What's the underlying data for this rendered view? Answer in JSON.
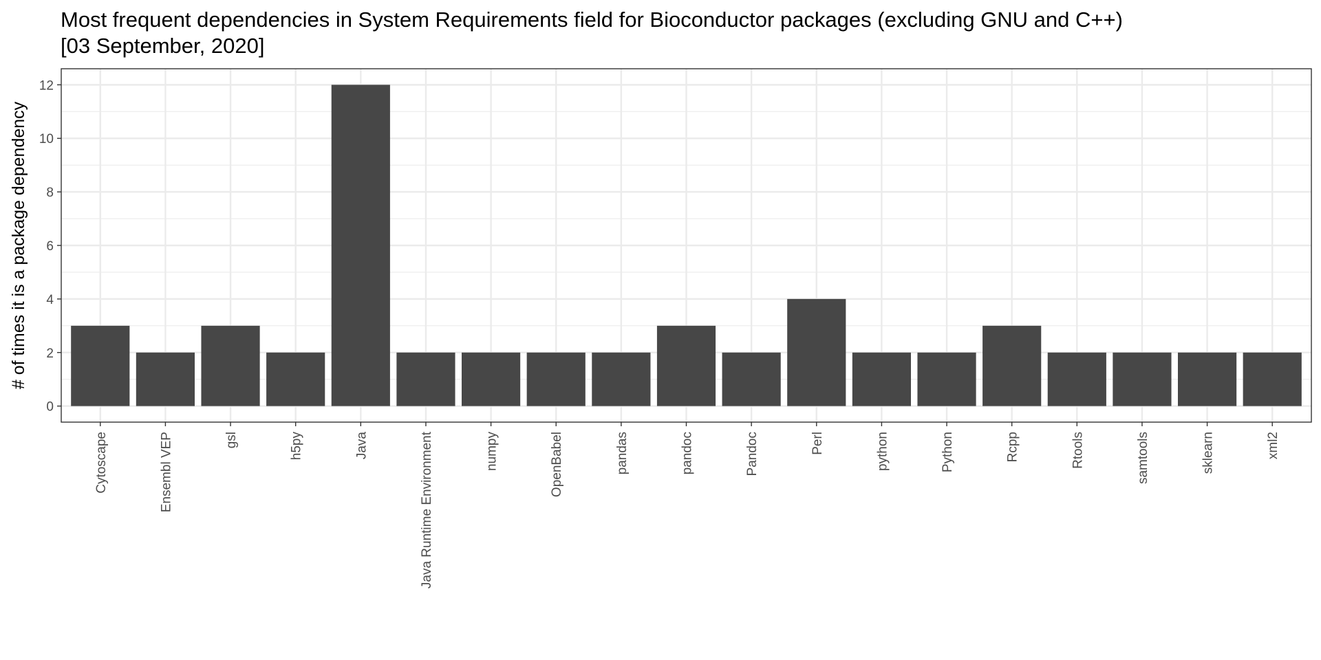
{
  "chart_data": {
    "type": "bar",
    "title": "Most frequent dependencies in System Requirements field for Bioconductor packages (excluding GNU and C++)",
    "subtitle": "[03 September, 2020]",
    "xlabel": "",
    "ylabel": "# of times it is a package dependency",
    "categories": [
      "Cytoscape",
      "Ensembl VEP",
      "gsl",
      "h5py",
      "Java",
      "Java Runtime Environment",
      "numpy",
      "OpenBabel",
      "pandas",
      "pandoc",
      "Pandoc",
      "Perl",
      "python",
      "Python",
      "Rcpp",
      "Rtools",
      "samtools",
      "sklearn",
      "xml2"
    ],
    "values": [
      3,
      2,
      3,
      2,
      12,
      2,
      2,
      2,
      2,
      3,
      2,
      4,
      2,
      2,
      3,
      2,
      2,
      2,
      2
    ],
    "ylim": [
      -0.6,
      12.6
    ],
    "yticks": [
      0,
      2,
      4,
      6,
      8,
      10,
      12
    ],
    "grid": true,
    "legend": "none",
    "bar_color": "#474747",
    "grid_color": "#ebebeb",
    "panel_border_color": "#333333"
  }
}
